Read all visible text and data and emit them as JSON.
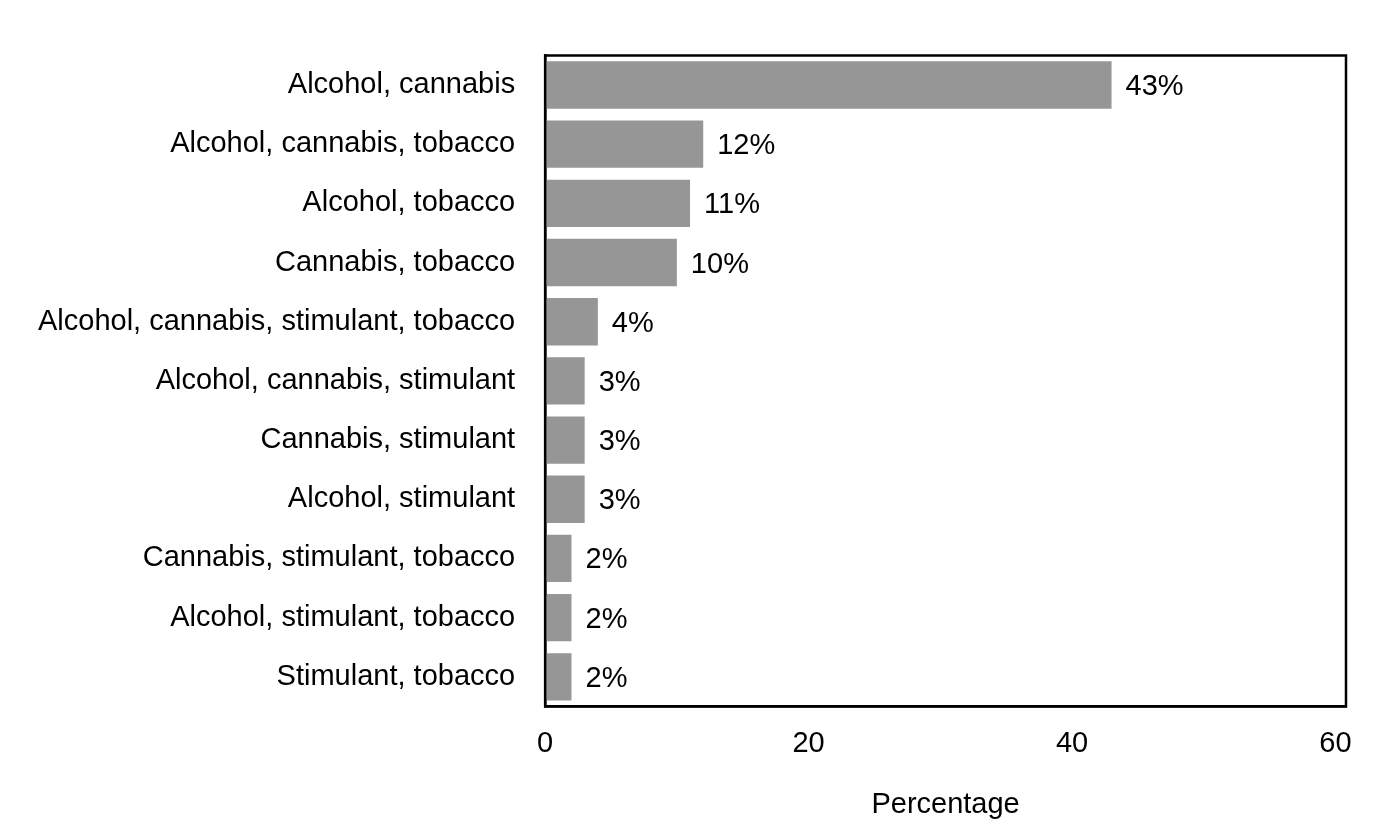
{
  "chart_data": {
    "type": "bar",
    "orientation": "horizontal",
    "xlabel": "Percentage",
    "categories": [
      "Alcohol, cannabis",
      "Alcohol, cannabis, tobacco",
      "Alcohol, tobacco",
      "Cannabis, tobacco",
      "Alcohol, cannabis, stimulant, tobacco",
      "Alcohol, cannabis, stimulant",
      "Cannabis, stimulant",
      "Alcohol, stimulant",
      "Cannabis, stimulant, tobacco",
      "Alcohol, stimulant, tobacco",
      "Stimulant, tobacco"
    ],
    "values": [
      43,
      12,
      11,
      10,
      4,
      3,
      3,
      3,
      2,
      2,
      2
    ],
    "value_labels": [
      "43%",
      "12%",
      "11%",
      "10%",
      "4%",
      "3%",
      "3%",
      "3%",
      "2%",
      "2%",
      "2%"
    ],
    "color": "#969696",
    "xlim": [
      0,
      60.8
    ],
    "xticks": [
      0,
      20,
      40,
      60
    ],
    "grid": false,
    "legend": false
  }
}
